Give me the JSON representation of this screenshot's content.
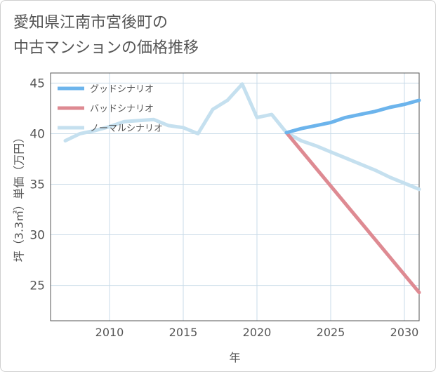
{
  "title": {
    "line1": "愛知県江南市宮後町の",
    "line2": "中古マンションの価格推移"
  },
  "chart_data": {
    "type": "line",
    "title": "愛知県江南市宮後町の中古マンションの価格推移",
    "xlabel": "年",
    "ylabel": "坪（3.3㎡）単価（万円）",
    "xlim": [
      2006,
      2031
    ],
    "ylim": [
      21.5,
      46
    ],
    "xticks": [
      2010,
      2015,
      2020,
      2025,
      2030
    ],
    "yticks": [
      25,
      30,
      35,
      40,
      45
    ],
    "grid": true,
    "legend_position": "top-left",
    "series": [
      {
        "name": "グッドシナリオ",
        "color": "#6cb4ec",
        "x": [
          2022,
          2023,
          2024,
          2025,
          2026,
          2027,
          2028,
          2029,
          2030,
          2031
        ],
        "y": [
          40.1,
          40.5,
          40.8,
          41.1,
          41.6,
          41.9,
          42.2,
          42.6,
          42.9,
          43.3
        ]
      },
      {
        "name": "バッドシナリオ",
        "color": "#de8a92",
        "x": [
          2022,
          2031
        ],
        "y": [
          40.1,
          24.3
        ]
      },
      {
        "name": "ノーマルシナリオ",
        "color": "#c5e0ef",
        "x": [
          2007,
          2008,
          2009,
          2010,
          2011,
          2012,
          2013,
          2014,
          2015,
          2016,
          2017,
          2018,
          2019,
          2020,
          2021,
          2022,
          2023,
          2024,
          2025,
          2026,
          2027,
          2028,
          2029,
          2030,
          2031
        ],
        "y": [
          39.3,
          40.0,
          40.3,
          40.7,
          41.2,
          41.3,
          41.4,
          40.8,
          40.6,
          40.0,
          42.4,
          43.3,
          44.9,
          41.6,
          41.9,
          40.1,
          39.3,
          38.8,
          38.2,
          37.6,
          37.0,
          36.4,
          35.7,
          35.1,
          34.5
        ]
      }
    ]
  }
}
